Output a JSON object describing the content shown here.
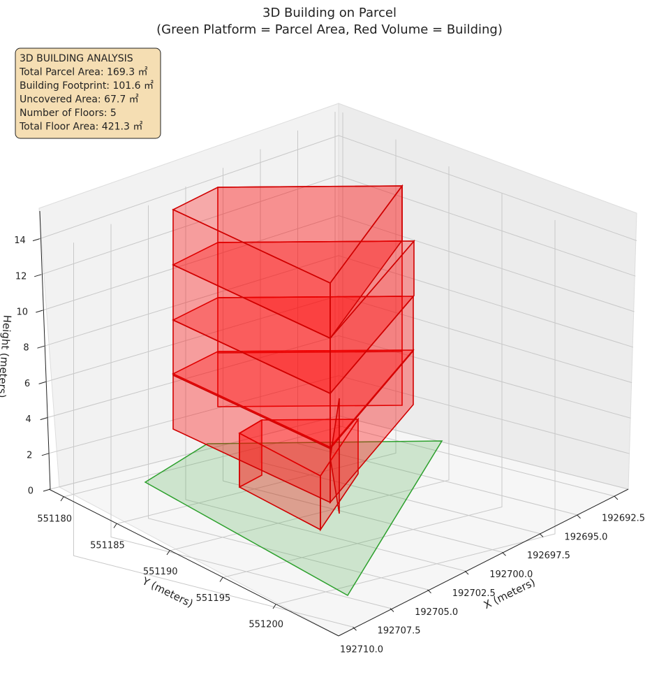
{
  "chart_data": {
    "type": "3d-polygon",
    "title": "3D Building on Parcel",
    "subtitle": "(Green Platform = Parcel Area, Red Volume = Building)",
    "annotation": [
      "3D BUILDING ANALYSIS",
      "Total Parcel Area: 169.3 ㎡",
      "Building Footprint: 101.6 ㎡",
      "Uncovered Area: 67.7 ㎡",
      "Number of Floors: 5",
      "Total Floor Area: 421.3 ㎡"
    ],
    "xlabel": "X (meters)",
    "ylabel": "Y (meters)",
    "zlabel": "Height (meters)",
    "xticks": [
      192692.5,
      {
        "value": 192695,
        "label": "192695.0"
      },
      192697.5,
      {
        "value": 192700,
        "label": "192700.0"
      },
      192702.5,
      {
        "value": 192705,
        "label": "192705.0"
      },
      192707.5,
      {
        "value": 192710,
        "label": "192710.0"
      }
    ],
    "yticks": [
      551180,
      551185,
      551190,
      551195,
      551200
    ],
    "zticks": [
      0,
      2,
      4,
      6,
      8,
      10,
      12,
      14
    ],
    "parcel_color": "#2ca02c",
    "building_color": "#ff0000"
  }
}
